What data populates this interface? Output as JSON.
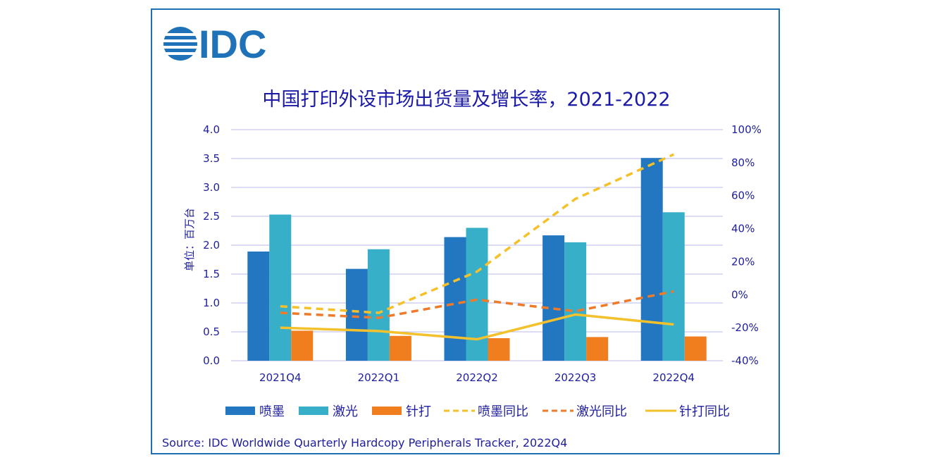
{
  "logo": {
    "text": "IDC"
  },
  "source": "Source:  IDC Worldwide Quarterly Hardcopy Peripherals Tracker, 2022Q4",
  "colors": {
    "inkjet": "#2277c0",
    "laser": "#38afc9",
    "dotmatrix": "#f07d1e",
    "inkjet_yoy": "#f5c12a",
    "laser_yoy": "#ee7a2a",
    "dotmatrix_yoy": "#f3c12c",
    "grid": "#b8b8ea",
    "text": "#2020a0",
    "logo": "#1f72b8"
  },
  "chart_data": {
    "type": "bar",
    "title": "中国打印外设市场出货量及增长率，2021-2022",
    "ylabel": "单位：百万台",
    "ylim": [
      0,
      4.0
    ],
    "y_ticks": [
      "0.0",
      "0.5",
      "1.0",
      "1.5",
      "2.0",
      "2.5",
      "3.0",
      "3.5",
      "4.0"
    ],
    "y2lim": [
      -40,
      100
    ],
    "y2_ticks": [
      "-40%",
      "-20%",
      "0%",
      "20%",
      "40%",
      "60%",
      "80%",
      "100%"
    ],
    "grid": true,
    "legend_position": "bottom",
    "categories": [
      "2021Q4",
      "2022Q1",
      "2022Q2",
      "2022Q3",
      "2022Q4"
    ],
    "series": [
      {
        "name": "喷墨",
        "kind": "bar",
        "axis": "left",
        "values": [
          1.89,
          1.59,
          2.14,
          2.17,
          3.51
        ]
      },
      {
        "name": "激光",
        "kind": "bar",
        "axis": "left",
        "values": [
          2.53,
          1.93,
          2.3,
          2.05,
          2.57
        ]
      },
      {
        "name": "针打",
        "kind": "bar",
        "axis": "left",
        "values": [
          0.52,
          0.43,
          0.39,
          0.41,
          0.42
        ]
      },
      {
        "name": "喷墨同比",
        "kind": "line",
        "dash": true,
        "axis": "right",
        "values": [
          -7,
          -11,
          14,
          58,
          85
        ]
      },
      {
        "name": "激光同比",
        "kind": "line",
        "dash": true,
        "axis": "right",
        "values": [
          -11,
          -14,
          -3,
          -10,
          2
        ]
      },
      {
        "name": "针打同比",
        "kind": "line",
        "dash": false,
        "axis": "right",
        "values": [
          -20,
          -22,
          -27,
          -12,
          -18
        ]
      }
    ]
  }
}
